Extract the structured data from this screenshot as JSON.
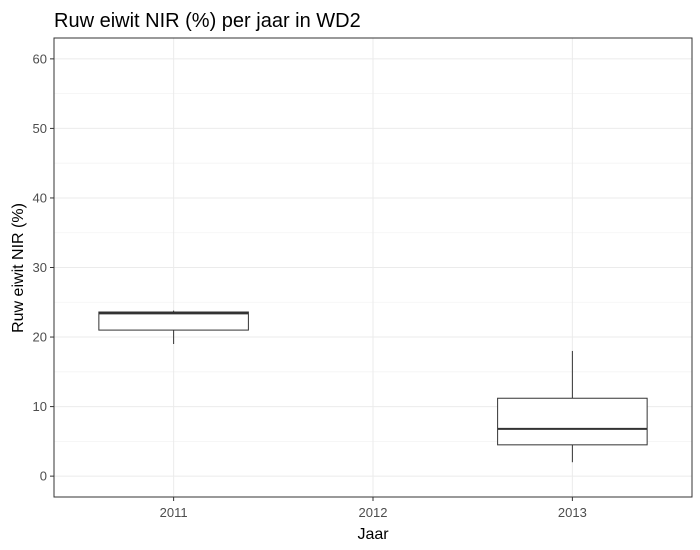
{
  "chart_data": {
    "type": "box",
    "title": "Ruw eiwit NIR (%) per jaar in WD2",
    "xlabel": "Jaar",
    "ylabel": "Ruw eiwit NIR (%)",
    "categories": [
      "2011",
      "2012",
      "2013"
    ],
    "ylim": [
      -3,
      63
    ],
    "yticks": [
      0,
      10,
      20,
      30,
      40,
      50,
      60
    ],
    "grid": true,
    "boxes": [
      {
        "category": "2011",
        "min": 19.0,
        "q1": 21.0,
        "median": 23.4,
        "q3": 23.6,
        "max": 23.8
      },
      {
        "category": "2013",
        "min": 2.0,
        "q1": 4.5,
        "median": 6.8,
        "q3": 11.2,
        "max": 18.0
      }
    ],
    "colors": {
      "box_fill": "#ffffff",
      "box_stroke": "#333333",
      "grid_major": "#ebebeb",
      "grid_minor": "#f4f4f4",
      "panel_border": "#333333"
    }
  }
}
